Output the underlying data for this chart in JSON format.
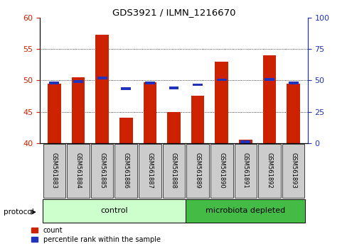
{
  "title": "GDS3921 / ILMN_1216670",
  "samples": [
    "GSM561883",
    "GSM561884",
    "GSM561885",
    "GSM561886",
    "GSM561887",
    "GSM561888",
    "GSM561889",
    "GSM561890",
    "GSM561891",
    "GSM561892",
    "GSM561893"
  ],
  "count_values": [
    49.5,
    50.5,
    57.3,
    44.0,
    49.7,
    45.0,
    47.5,
    53.0,
    40.5,
    54.0,
    49.5
  ],
  "percentile_values": [
    48,
    49,
    52,
    43.5,
    48,
    44,
    46.5,
    50.5,
    1,
    50.7,
    48
  ],
  "count_baseline": 40.0,
  "left_ylim": [
    40,
    60
  ],
  "right_ylim": [
    0,
    100
  ],
  "left_yticks": [
    40,
    45,
    50,
    55,
    60
  ],
  "right_yticks": [
    0,
    25,
    50,
    75,
    100
  ],
  "bar_color": "#cc2200",
  "percentile_color": "#2233bb",
  "grid_color": "#000000",
  "n_control": 6,
  "n_microbiota": 5,
  "control_label": "control",
  "microbiota_label": "microbiota depleted",
  "protocol_label": "protocol",
  "legend_count": "count",
  "legend_percentile": "percentile rank within the sample",
  "control_color": "#ccffcc",
  "microbiota_color": "#44bb44",
  "tick_label_bg": "#cccccc",
  "bar_width": 0.55
}
